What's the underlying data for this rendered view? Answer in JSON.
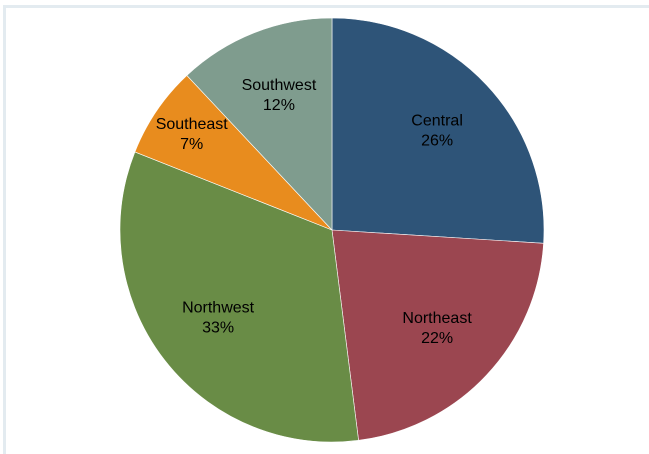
{
  "chart_data": {
    "type": "pie",
    "categories": [
      "Central",
      "Northeast",
      "Northwest",
      "Southeast",
      "Southwest"
    ],
    "values": [
      26,
      22,
      33,
      7,
      12
    ],
    "value_labels": [
      "26%",
      "22%",
      "33%",
      "7%",
      "12%"
    ],
    "colors": [
      "#2e5478",
      "#9b4650",
      "#698c46",
      "#e88c1e",
      "#7f9c8e"
    ]
  }
}
